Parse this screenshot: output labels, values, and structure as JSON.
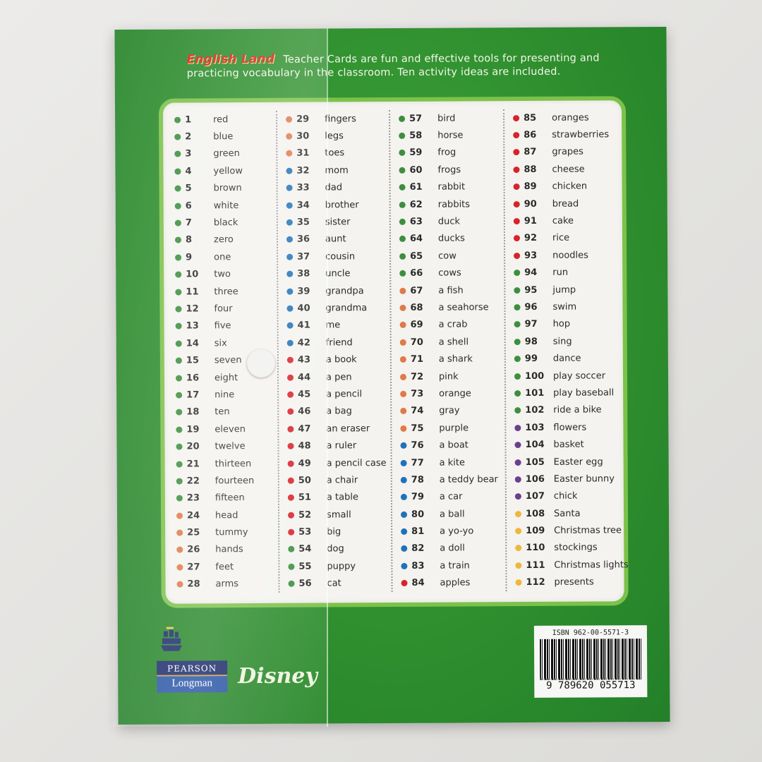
{
  "header": {
    "brand": "English Land",
    "intro": "Teacher Cards are fun and effective tools for presenting and practicing vocabulary in the classroom. Ten activity ideas are included."
  },
  "colors": {
    "green": "#3d8f3f",
    "orange": "#e07a4a",
    "blue": "#1f72b8",
    "red": "#d8232c",
    "purple": "#6b3f8f",
    "yellow": "#f0b73a",
    "cover": "#2f8f2f"
  },
  "columns": [
    [
      [
        1,
        "red",
        "green"
      ],
      [
        2,
        "blue",
        "green"
      ],
      [
        3,
        "green",
        "green"
      ],
      [
        4,
        "yellow",
        "green"
      ],
      [
        5,
        "brown",
        "green"
      ],
      [
        6,
        "white",
        "green"
      ],
      [
        7,
        "black",
        "green"
      ],
      [
        8,
        "zero",
        "green"
      ],
      [
        9,
        "one",
        "green"
      ],
      [
        10,
        "two",
        "green"
      ],
      [
        11,
        "three",
        "green"
      ],
      [
        12,
        "four",
        "green"
      ],
      [
        13,
        "five",
        "green"
      ],
      [
        14,
        "six",
        "green"
      ],
      [
        15,
        "seven",
        "green"
      ],
      [
        16,
        "eight",
        "green"
      ],
      [
        17,
        "nine",
        "green"
      ],
      [
        18,
        "ten",
        "green"
      ],
      [
        19,
        "eleven",
        "green"
      ],
      [
        20,
        "twelve",
        "green"
      ],
      [
        21,
        "thirteen",
        "green"
      ],
      [
        22,
        "fourteen",
        "green"
      ],
      [
        23,
        "fifteen",
        "green"
      ],
      [
        24,
        "head",
        "orange"
      ],
      [
        25,
        "tummy",
        "orange"
      ],
      [
        26,
        "hands",
        "orange"
      ],
      [
        27,
        "feet",
        "orange"
      ],
      [
        28,
        "arms",
        "orange"
      ]
    ],
    [
      [
        29,
        "fingers",
        "orange"
      ],
      [
        30,
        "legs",
        "orange"
      ],
      [
        31,
        "toes",
        "orange"
      ],
      [
        32,
        "mom",
        "blue"
      ],
      [
        33,
        "dad",
        "blue"
      ],
      [
        34,
        "brother",
        "blue"
      ],
      [
        35,
        "sister",
        "blue"
      ],
      [
        36,
        "aunt",
        "blue"
      ],
      [
        37,
        "cousin",
        "blue"
      ],
      [
        38,
        "uncle",
        "blue"
      ],
      [
        39,
        "grandpa",
        "blue"
      ],
      [
        40,
        "grandma",
        "blue"
      ],
      [
        41,
        "me",
        "blue"
      ],
      [
        42,
        "friend",
        "blue"
      ],
      [
        43,
        "a book",
        "red"
      ],
      [
        44,
        "a pen",
        "red"
      ],
      [
        45,
        "a pencil",
        "red"
      ],
      [
        46,
        "a bag",
        "red"
      ],
      [
        47,
        "an eraser",
        "red"
      ],
      [
        48,
        "a ruler",
        "red"
      ],
      [
        49,
        "a pencil case",
        "red"
      ],
      [
        50,
        "a chair",
        "red"
      ],
      [
        51,
        "a table",
        "red"
      ],
      [
        52,
        "small",
        "red"
      ],
      [
        53,
        "big",
        "red"
      ],
      [
        54,
        "dog",
        "green"
      ],
      [
        55,
        "puppy",
        "green"
      ],
      [
        56,
        "cat",
        "green"
      ]
    ],
    [
      [
        57,
        "bird",
        "green"
      ],
      [
        58,
        "horse",
        "green"
      ],
      [
        59,
        "frog",
        "green"
      ],
      [
        60,
        "frogs",
        "green"
      ],
      [
        61,
        "rabbit",
        "green"
      ],
      [
        62,
        "rabbits",
        "green"
      ],
      [
        63,
        "duck",
        "green"
      ],
      [
        64,
        "ducks",
        "green"
      ],
      [
        65,
        "cow",
        "green"
      ],
      [
        66,
        "cows",
        "green"
      ],
      [
        67,
        "a fish",
        "orange"
      ],
      [
        68,
        "a seahorse",
        "orange"
      ],
      [
        69,
        "a crab",
        "orange"
      ],
      [
        70,
        "a shell",
        "orange"
      ],
      [
        71,
        "a shark",
        "orange"
      ],
      [
        72,
        "pink",
        "orange"
      ],
      [
        73,
        "orange",
        "orange"
      ],
      [
        74,
        "gray",
        "orange"
      ],
      [
        75,
        "purple",
        "orange"
      ],
      [
        76,
        "a boat",
        "blue"
      ],
      [
        77,
        "a kite",
        "blue"
      ],
      [
        78,
        "a teddy bear",
        "blue"
      ],
      [
        79,
        "a car",
        "blue"
      ],
      [
        80,
        "a ball",
        "blue"
      ],
      [
        81,
        "a yo-yo",
        "blue"
      ],
      [
        82,
        "a doll",
        "blue"
      ],
      [
        83,
        "a train",
        "blue"
      ],
      [
        84,
        "apples",
        "red"
      ]
    ],
    [
      [
        85,
        "oranges",
        "red"
      ],
      [
        86,
        "strawberries",
        "red"
      ],
      [
        87,
        "grapes",
        "red"
      ],
      [
        88,
        "cheese",
        "red"
      ],
      [
        89,
        "chicken",
        "red"
      ],
      [
        90,
        "bread",
        "red"
      ],
      [
        91,
        "cake",
        "red"
      ],
      [
        92,
        "rice",
        "red"
      ],
      [
        93,
        "noodles",
        "red"
      ],
      [
        94,
        "run",
        "green"
      ],
      [
        95,
        "jump",
        "green"
      ],
      [
        96,
        "swim",
        "green"
      ],
      [
        97,
        "hop",
        "green"
      ],
      [
        98,
        "sing",
        "green"
      ],
      [
        99,
        "dance",
        "green"
      ],
      [
        100,
        "play soccer",
        "green"
      ],
      [
        101,
        "play baseball",
        "green"
      ],
      [
        102,
        "ride a bike",
        "green"
      ],
      [
        103,
        "flowers",
        "purple"
      ],
      [
        104,
        "basket",
        "purple"
      ],
      [
        105,
        "Easter egg",
        "purple"
      ],
      [
        106,
        "Easter bunny",
        "purple"
      ],
      [
        107,
        "chick",
        "purple"
      ],
      [
        108,
        "Santa",
        "yellow"
      ],
      [
        109,
        "Christmas tree",
        "yellow"
      ],
      [
        110,
        "stockings",
        "yellow"
      ],
      [
        111,
        "Christmas lights",
        "yellow"
      ],
      [
        112,
        "presents",
        "yellow"
      ]
    ]
  ],
  "publisher": {
    "line1": "PEARSON",
    "line2": "Longman",
    "partner": "Disney"
  },
  "barcode": {
    "isbn": "ISBN 962-00-5571-3",
    "ean": "9 789620 055713"
  }
}
